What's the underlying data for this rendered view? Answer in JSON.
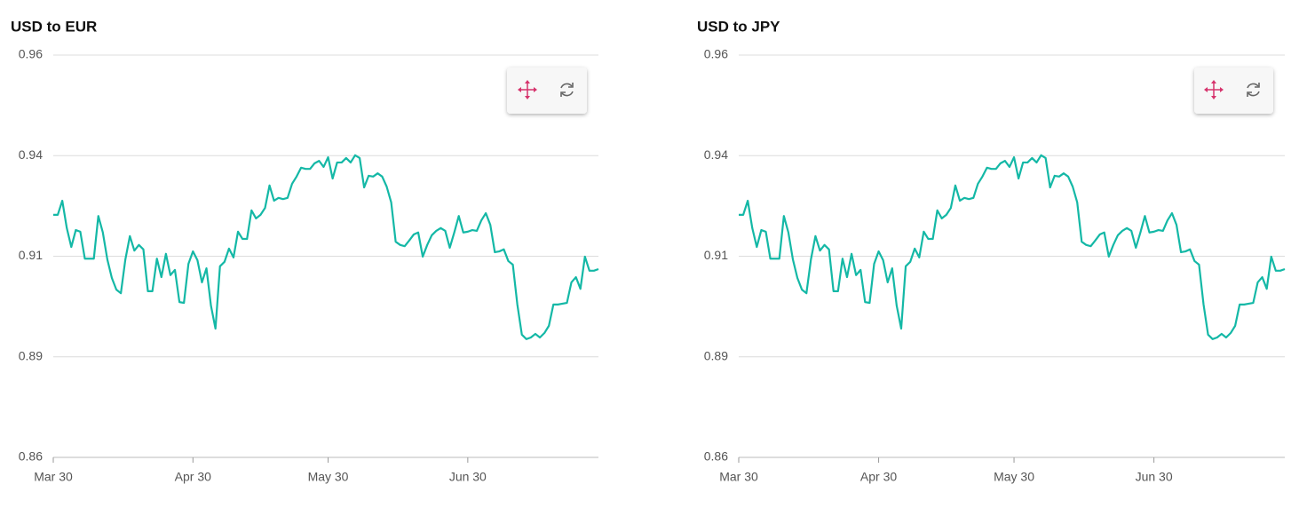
{
  "chart_data": [
    {
      "type": "line",
      "title": "USD to EUR",
      "x": [
        "Mar 30",
        "Mar 31",
        "Apr 1",
        "Apr 2",
        "Apr 3",
        "Apr 4",
        "Apr 5",
        "Apr 6",
        "Apr 7",
        "Apr 8",
        "Apr 9",
        "Apr 10",
        "Apr 11",
        "Apr 12",
        "Apr 13",
        "Apr 14",
        "Apr 15",
        "Apr 16",
        "Apr 17",
        "Apr 18",
        "Apr 19",
        "Apr 20",
        "Apr 21",
        "Apr 22",
        "Apr 23",
        "Apr 24",
        "Apr 25",
        "Apr 26",
        "Apr 27",
        "Apr 28",
        "Apr 29",
        "Apr 30",
        "May 1",
        "May 2",
        "May 3",
        "May 4",
        "May 5",
        "May 6",
        "May 7",
        "May 8",
        "May 9",
        "May 10",
        "May 11",
        "May 12",
        "May 13",
        "May 14",
        "May 15",
        "May 16",
        "May 17",
        "May 18",
        "May 19",
        "May 20",
        "May 21",
        "May 22",
        "May 23",
        "May 24",
        "May 25",
        "May 26",
        "May 27",
        "May 28",
        "May 29",
        "May 30",
        "May 31",
        "Jun 1",
        "Jun 2",
        "Jun 3",
        "Jun 4",
        "Jun 5",
        "Jun 6",
        "Jun 7",
        "Jun 8",
        "Jun 9",
        "Jun 10",
        "Jun 11",
        "Jun 12",
        "Jun 13",
        "Jun 14",
        "Jun 15",
        "Jun 16",
        "Jun 17",
        "Jun 18",
        "Jun 19",
        "Jun 20",
        "Jun 21",
        "Jun 22",
        "Jun 23",
        "Jun 24",
        "Jun 25",
        "Jun 26",
        "Jun 27",
        "Jun 28",
        "Jun 29",
        "Jun 30",
        "Jul 1",
        "Jul 2",
        "Jul 3",
        "Jul 4",
        "Jul 5",
        "Jul 6",
        "Jul 7",
        "Jul 8",
        "Jul 9",
        "Jul 10",
        "Jul 11",
        "Jul 12",
        "Jul 13",
        "Jul 14",
        "Jul 15",
        "Jul 16",
        "Jul 17",
        "Jul 18",
        "Jul 19",
        "Jul 20",
        "Jul 21",
        "Jul 22",
        "Jul 23",
        "Jul 24",
        "Jul 25",
        "Jul 26",
        "Jul 27",
        "Jul 28",
        "Jul 29"
      ],
      "series": [
        {
          "color": "#14b8a6",
          "values": [
            0.9203,
            0.9203,
            0.9238,
            0.917,
            0.9123,
            0.9165,
            0.9161,
            0.9094,
            0.9094,
            0.9094,
            0.92,
            0.9159,
            0.9092,
            0.9046,
            0.9017,
            0.9008,
            0.9092,
            0.915,
            0.9114,
            0.9128,
            0.9117,
            0.9013,
            0.9013,
            0.9094,
            0.9048,
            0.9106,
            0.9053,
            0.9066,
            0.8986,
            0.8984,
            0.9081,
            0.9112,
            0.909,
            0.9035,
            0.907,
            0.8977,
            0.892,
            0.9075,
            0.9086,
            0.9119,
            0.9097,
            0.9161,
            0.9143,
            0.9143,
            0.9214,
            0.9194,
            0.9203,
            0.922,
            0.9276,
            0.9238,
            0.9245,
            0.9242,
            0.9245,
            0.928,
            0.9298,
            0.932,
            0.9317,
            0.9317,
            0.9331,
            0.9337,
            0.9322,
            0.9346,
            0.9293,
            0.9333,
            0.9333,
            0.9344,
            0.9333,
            0.9351,
            0.9344,
            0.9271,
            0.93,
            0.9298,
            0.9306,
            0.9298,
            0.9273,
            0.9234,
            0.9136,
            0.9128,
            0.9125,
            0.9139,
            0.9154,
            0.9159,
            0.9099,
            0.9128,
            0.9152,
            0.9163,
            0.917,
            0.9163,
            0.9121,
            0.9159,
            0.92,
            0.9159,
            0.9161,
            0.9165,
            0.9163,
            0.9189,
            0.9207,
            0.9178,
            0.911,
            0.9112,
            0.9117,
            0.9088,
            0.9079,
            0.898,
            0.8905,
            0.8894,
            0.8898,
            0.8907,
            0.8898,
            0.8909,
            0.8927,
            0.898,
            0.898,
            0.8982,
            0.8984,
            0.9035,
            0.9048,
            0.9019,
            0.9099,
            0.9064,
            0.9064,
            0.9068
          ]
        }
      ],
      "ylim": [
        0.86,
        0.96
      ],
      "yticks": [
        0.86,
        {
          "value": 0.885,
          "label": "0.89"
        },
        0.91,
        {
          "value": 0.935,
          "label": "0.94"
        },
        0.96
      ],
      "xticks": [
        "Mar 30",
        "Apr 30",
        "May 30",
        "Jun 30"
      ],
      "grid": true
    },
    {
      "type": "line",
      "title": "USD to JPY",
      "x": [
        "Mar 30",
        "Mar 31",
        "Apr 1",
        "Apr 2",
        "Apr 3",
        "Apr 4",
        "Apr 5",
        "Apr 6",
        "Apr 7",
        "Apr 8",
        "Apr 9",
        "Apr 10",
        "Apr 11",
        "Apr 12",
        "Apr 13",
        "Apr 14",
        "Apr 15",
        "Apr 16",
        "Apr 17",
        "Apr 18",
        "Apr 19",
        "Apr 20",
        "Apr 21",
        "Apr 22",
        "Apr 23",
        "Apr 24",
        "Apr 25",
        "Apr 26",
        "Apr 27",
        "Apr 28",
        "Apr 29",
        "Apr 30",
        "May 1",
        "May 2",
        "May 3",
        "May 4",
        "May 5",
        "May 6",
        "May 7",
        "May 8",
        "May 9",
        "May 10",
        "May 11",
        "May 12",
        "May 13",
        "May 14",
        "May 15",
        "May 16",
        "May 17",
        "May 18",
        "May 19",
        "May 20",
        "May 21",
        "May 22",
        "May 23",
        "May 24",
        "May 25",
        "May 26",
        "May 27",
        "May 28",
        "May 29",
        "May 30",
        "May 31",
        "Jun 1",
        "Jun 2",
        "Jun 3",
        "Jun 4",
        "Jun 5",
        "Jun 6",
        "Jun 7",
        "Jun 8",
        "Jun 9",
        "Jun 10",
        "Jun 11",
        "Jun 12",
        "Jun 13",
        "Jun 14",
        "Jun 15",
        "Jun 16",
        "Jun 17",
        "Jun 18",
        "Jun 19",
        "Jun 20",
        "Jun 21",
        "Jun 22",
        "Jun 23",
        "Jun 24",
        "Jun 25",
        "Jun 26",
        "Jun 27",
        "Jun 28",
        "Jun 29",
        "Jun 30",
        "Jul 1",
        "Jul 2",
        "Jul 3",
        "Jul 4",
        "Jul 5",
        "Jul 6",
        "Jul 7",
        "Jul 8",
        "Jul 9",
        "Jul 10",
        "Jul 11",
        "Jul 12",
        "Jul 13",
        "Jul 14",
        "Jul 15",
        "Jul 16",
        "Jul 17",
        "Jul 18",
        "Jul 19",
        "Jul 20",
        "Jul 21",
        "Jul 22",
        "Jul 23",
        "Jul 24",
        "Jul 25",
        "Jul 26",
        "Jul 27",
        "Jul 28",
        "Jul 29"
      ],
      "series": [
        {
          "color": "#14b8a6",
          "values": [
            0.9203,
            0.9203,
            0.9238,
            0.917,
            0.9123,
            0.9165,
            0.9161,
            0.9094,
            0.9094,
            0.9094,
            0.92,
            0.9159,
            0.9092,
            0.9046,
            0.9017,
            0.9008,
            0.9092,
            0.915,
            0.9114,
            0.9128,
            0.9117,
            0.9013,
            0.9013,
            0.9094,
            0.9048,
            0.9106,
            0.9053,
            0.9066,
            0.8986,
            0.8984,
            0.9081,
            0.9112,
            0.909,
            0.9035,
            0.907,
            0.8977,
            0.892,
            0.9075,
            0.9086,
            0.9119,
            0.9097,
            0.9161,
            0.9143,
            0.9143,
            0.9214,
            0.9194,
            0.9203,
            0.922,
            0.9276,
            0.9238,
            0.9245,
            0.9242,
            0.9245,
            0.928,
            0.9298,
            0.932,
            0.9317,
            0.9317,
            0.9331,
            0.9337,
            0.9322,
            0.9346,
            0.9293,
            0.9333,
            0.9333,
            0.9344,
            0.9333,
            0.9351,
            0.9344,
            0.9271,
            0.93,
            0.9298,
            0.9306,
            0.9298,
            0.9273,
            0.9234,
            0.9136,
            0.9128,
            0.9125,
            0.9139,
            0.9154,
            0.9159,
            0.9099,
            0.9128,
            0.9152,
            0.9163,
            0.917,
            0.9163,
            0.9121,
            0.9159,
            0.92,
            0.9159,
            0.9161,
            0.9165,
            0.9163,
            0.9189,
            0.9207,
            0.9178,
            0.911,
            0.9112,
            0.9117,
            0.9088,
            0.9079,
            0.898,
            0.8905,
            0.8894,
            0.8898,
            0.8907,
            0.8898,
            0.8909,
            0.8927,
            0.898,
            0.898,
            0.8982,
            0.8984,
            0.9035,
            0.9048,
            0.9019,
            0.9099,
            0.9064,
            0.9064,
            0.9068
          ]
        }
      ],
      "ylim": [
        0.86,
        0.96
      ],
      "yticks": [
        0.86,
        {
          "value": 0.885,
          "label": "0.89"
        },
        0.91,
        {
          "value": 0.935,
          "label": "0.94"
        },
        0.96
      ],
      "xticks": [
        "Mar 30",
        "Apr 30",
        "May 30",
        "Jun 30"
      ],
      "grid": true
    }
  ]
}
